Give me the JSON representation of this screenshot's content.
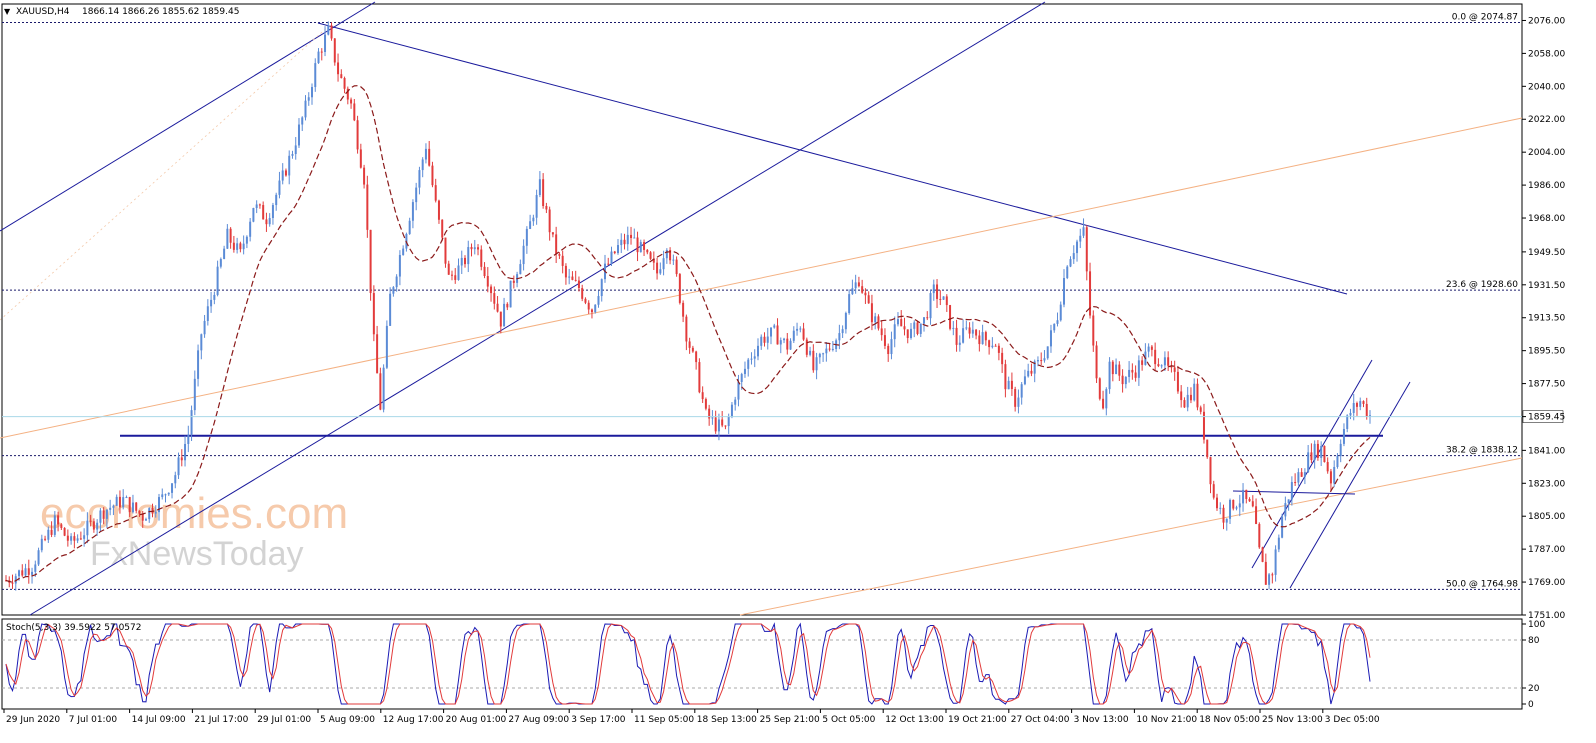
{
  "header": {
    "symbol": "XAUUSD,H4",
    "ohlc": "1866.14 1866.26 1855.62 1859.45"
  },
  "watermark": {
    "line1": "economies.com",
    "line2": "FxNewsToday"
  },
  "colors": {
    "bull": "#5b8bd6",
    "bear": "#e23b3b",
    "ma": "#8b1a1a",
    "trend": "#1a1a9c",
    "orange": "#f4b183",
    "stoch_main": "#1a1ab4",
    "stoch_signal": "#e23b3b"
  },
  "chart_data": [
    {
      "type": "candlestick",
      "title": "XAUUSD,H4",
      "ylim": [
        1751,
        2085
      ],
      "y_ticks": [
        "2076.00",
        "2058.00",
        "2040.00",
        "2022.00",
        "2004.00",
        "1986.00",
        "1968.00",
        "1949.50",
        "1931.50",
        "1913.50",
        "1895.50",
        "1877.50",
        "1859.45",
        "1841.00",
        "1823.00",
        "1805.00",
        "1787.00",
        "1769.00",
        "1751.00"
      ],
      "current_price": "1859.45",
      "x_ticks": [
        "29 Jun 2020",
        "7 Jul 01:00",
        "14 Jul 09:00",
        "21 Jul 17:00",
        "29 Jul 01:00",
        "5 Aug 09:00",
        "12 Aug 17:00",
        "20 Aug 01:00",
        "27 Aug 09:00",
        "3 Sep 17:00",
        "11 Sep 05:00",
        "18 Sep 13:00",
        "25 Sep 21:00",
        "5 Oct 05:00",
        "12 Oct 13:00",
        "19 Oct 21:00",
        "27 Oct 04:00",
        "3 Nov 13:00",
        "10 Nov 21:00",
        "18 Nov 05:00",
        "25 Nov 13:00",
        "3 Dec 05:00"
      ],
      "fibonacci": [
        {
          "label": "0.0 @ 2074.87",
          "value": 2074.87
        },
        {
          "label": "23.6 @ 1928.60",
          "value": 1928.6
        },
        {
          "label": "38.2 @ 1838.12",
          "value": 1838.12
        },
        {
          "label": "50.0 @ 1764.98",
          "value": 1764.98
        }
      ],
      "support_level": 1849,
      "price_path": [
        [
          0,
          1770
        ],
        [
          8,
          1778
        ],
        [
          15,
          1802
        ],
        [
          20,
          1790
        ],
        [
          26,
          1800
        ],
        [
          30,
          1808
        ],
        [
          36,
          1814
        ],
        [
          42,
          1805
        ],
        [
          48,
          1815
        ],
        [
          52,
          1828
        ],
        [
          56,
          1850
        ],
        [
          60,
          1905
        ],
        [
          64,
          1930
        ],
        [
          68,
          1958
        ],
        [
          72,
          1948
        ],
        [
          76,
          1975
        ],
        [
          80,
          1968
        ],
        [
          84,
          1985
        ],
        [
          88,
          2005
        ],
        [
          92,
          2028
        ],
        [
          96,
          2058
        ],
        [
          99,
          2070
        ],
        [
          102,
          2048
        ],
        [
          106,
          2030
        ],
        [
          110,
          1990
        ],
        [
          113,
          1900
        ],
        [
          115,
          1865
        ],
        [
          118,
          1925
        ],
        [
          122,
          1955
        ],
        [
          126,
          1985
        ],
        [
          129,
          2008
        ],
        [
          132,
          1975
        ],
        [
          136,
          1935
        ],
        [
          140,
          1942
        ],
        [
          144,
          1955
        ],
        [
          148,
          1935
        ],
        [
          152,
          1912
        ],
        [
          156,
          1935
        ],
        [
          160,
          1958
        ],
        [
          164,
          1985
        ],
        [
          168,
          1955
        ],
        [
          172,
          1935
        ],
        [
          176,
          1930
        ],
        [
          180,
          1918
        ],
        [
          184,
          1940
        ],
        [
          188,
          1952
        ],
        [
          192,
          1958
        ],
        [
          196,
          1948
        ],
        [
          200,
          1938
        ],
        [
          203,
          1955
        ],
        [
          206,
          1935
        ],
        [
          209,
          1905
        ],
        [
          212,
          1885
        ],
        [
          215,
          1860
        ],
        [
          218,
          1855
        ],
        [
          221,
          1852
        ],
        [
          224,
          1872
        ],
        [
          228,
          1890
        ],
        [
          232,
          1902
        ],
        [
          236,
          1905
        ],
        [
          240,
          1898
        ],
        [
          244,
          1910
        ],
        [
          248,
          1885
        ],
        [
          252,
          1895
        ],
        [
          256,
          1905
        ],
        [
          259,
          1925
        ],
        [
          262,
          1935
        ],
        [
          265,
          1918
        ],
        [
          268,
          1908
        ],
        [
          271,
          1898
        ],
        [
          274,
          1910
        ],
        [
          278,
          1905
        ],
        [
          282,
          1912
        ],
        [
          285,
          1928
        ],
        [
          288,
          1922
        ],
        [
          292,
          1900
        ],
        [
          296,
          1908
        ],
        [
          300,
          1902
        ],
        [
          304,
          1900
        ],
        [
          307,
          1878
        ],
        [
          310,
          1868
        ],
        [
          313,
          1880
        ],
        [
          317,
          1888
        ],
        [
          320,
          1898
        ],
        [
          323,
          1915
        ],
        [
          326,
          1945
        ],
        [
          329,
          1955
        ],
        [
          331,
          1960
        ],
        [
          333,
          1915
        ],
        [
          335,
          1878
        ],
        [
          337,
          1868
        ],
        [
          339,
          1888
        ],
        [
          343,
          1880
        ],
        [
          347,
          1885
        ],
        [
          351,
          1895
        ],
        [
          355,
          1890
        ],
        [
          359,
          1880
        ],
        [
          362,
          1868
        ],
        [
          365,
          1875
        ],
        [
          368,
          1850
        ],
        [
          371,
          1815
        ],
        [
          374,
          1805
        ],
        [
          377,
          1812
        ],
        [
          380,
          1815
        ],
        [
          383,
          1808
        ],
        [
          385,
          1785
        ],
        [
          387,
          1770
        ],
        [
          389,
          1775
        ],
        [
          392,
          1805
        ],
        [
          395,
          1822
        ],
        [
          398,
          1830
        ],
        [
          401,
          1840
        ],
        [
          404,
          1842
        ],
        [
          407,
          1825
        ],
        [
          410,
          1848
        ],
        [
          413,
          1862
        ],
        [
          416,
          1868
        ],
        [
          419,
          1860
        ]
      ],
      "stochastic": {
        "label": "Stoch(5,3,3) 39.5922 57.0572",
        "ylim": [
          0,
          100
        ],
        "levels": [
          20,
          80
        ],
        "y_ticks": [
          "100",
          "80",
          "20",
          "0"
        ]
      }
    }
  ]
}
